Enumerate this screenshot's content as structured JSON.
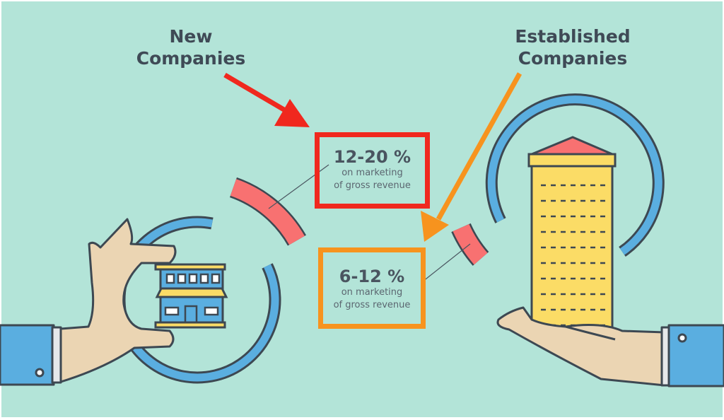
{
  "colors": {
    "background": "#b3e4d8",
    "ring_blue": "#5aaee0",
    "arc_red": "#f87171",
    "new_companies_accent": "#f0281e",
    "established_companies_accent": "#f7931e",
    "building_yellow": "#fbdc66",
    "skin": "#ebd5b3",
    "outline": "#3d4852"
  },
  "new_companies": {
    "title_line1": "New",
    "title_line2": "Companies",
    "percentage": "12-20 %",
    "line1": "on marketing",
    "line2": "of gross revenue",
    "icon": "storefront-icon"
  },
  "established_companies": {
    "title_line1": "Established",
    "title_line2": "Companies",
    "percentage": "6-12 %",
    "line1": "on marketing",
    "line2": "of gross revenue",
    "icon": "office-tower-icon"
  }
}
